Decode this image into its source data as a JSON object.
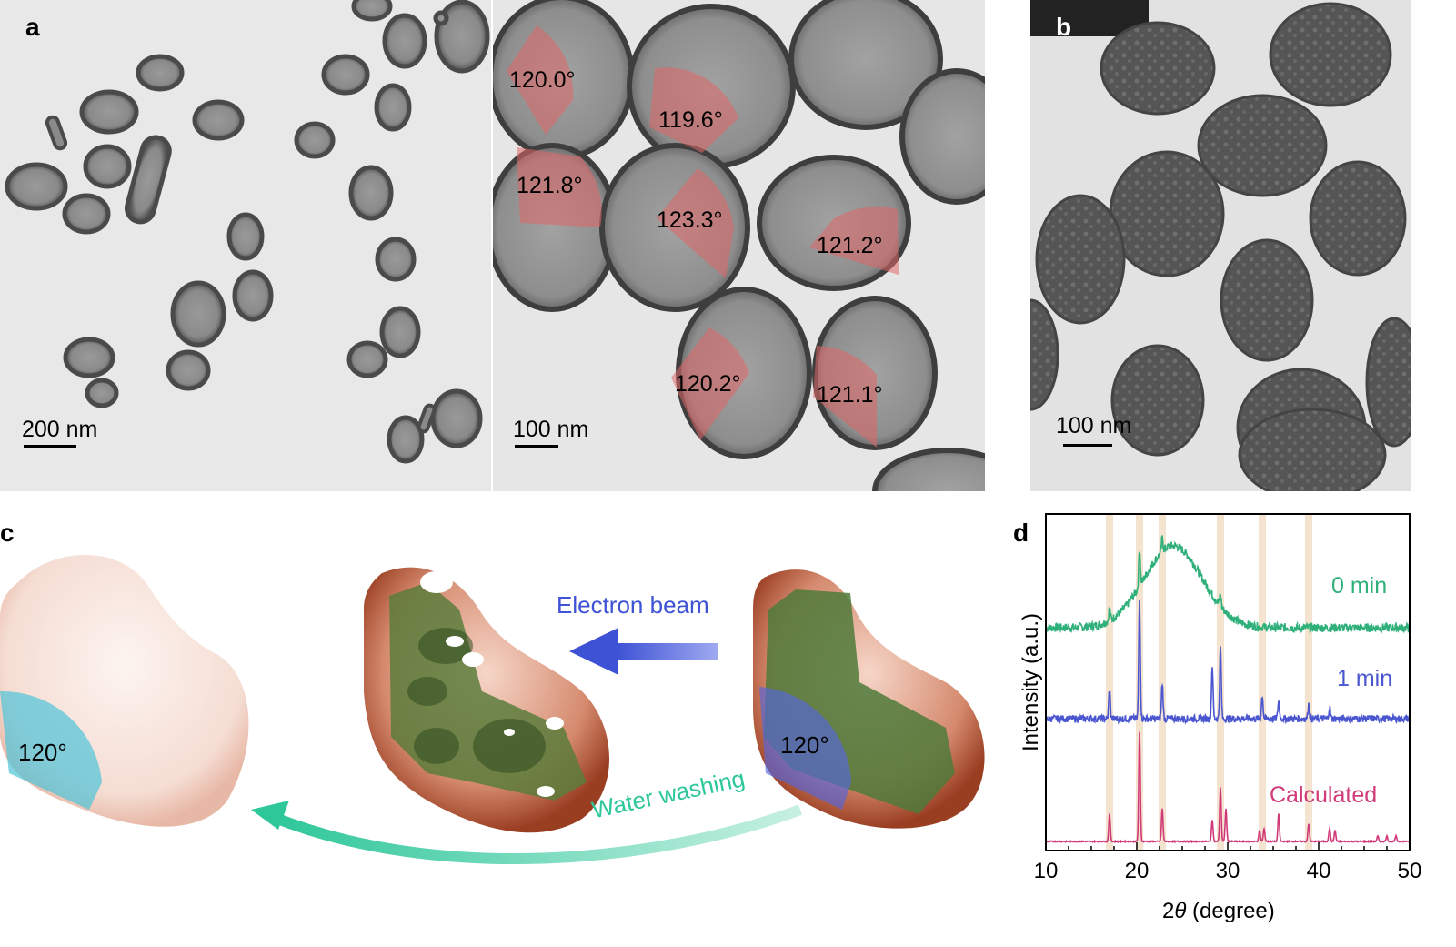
{
  "panel_a": {
    "letter": "a",
    "left_scale": "200 nm",
    "right_scale": "100 nm",
    "angles": [
      "120.0°",
      "119.6°",
      "121.8°",
      "123.3°",
      "121.2°",
      "120.2°",
      "121.1°"
    ]
  },
  "panel_b": {
    "letter": "b",
    "scale": "100 nm"
  },
  "panel_c": {
    "letter": "c",
    "angle_left": "120°",
    "angle_right": "120°",
    "electron_beam": "Electron beam",
    "water_washing": "Water washing",
    "colors": {
      "beam": "#3d52d5",
      "washing": "#2ec79a",
      "sector": "#4fc3d8",
      "shell": "#b85a3c",
      "core": "#4f7a3a"
    }
  },
  "panel_d": {
    "letter": "d",
    "chart_data": {
      "type": "line",
      "xlabel_prefix": "2",
      "xlabel_symbol": "θ",
      "xlabel_suffix": " (degree)",
      "ylabel": "Intensity (a.u.)",
      "xlim": [
        10,
        50
      ],
      "xticks": [
        10,
        20,
        30,
        40,
        50
      ],
      "highlight_bands": [
        17,
        20.3,
        22.8,
        29.2,
        33.8,
        38.9
      ],
      "series": [
        {
          "name": "0 min",
          "color": "#2fb07a",
          "peaks": [
            [
              17,
              0.3
            ],
            [
              20.3,
              1.0
            ],
            [
              22.8,
              0.35
            ],
            [
              29.2,
              0.3
            ]
          ],
          "hump": {
            "center": 24,
            "width": 4.5,
            "height": 1.0
          }
        },
        {
          "name": "1 min",
          "color": "#4a55d0",
          "peaks": [
            [
              17,
              0.25
            ],
            [
              20.3,
              1.0
            ],
            [
              22.8,
              0.3
            ],
            [
              28.3,
              0.45
            ],
            [
              29.2,
              0.6
            ],
            [
              33.8,
              0.2
            ],
            [
              35.6,
              0.15
            ],
            [
              38.9,
              0.12
            ],
            [
              41.2,
              0.1
            ]
          ]
        },
        {
          "name": "Calculated",
          "color": "#d03a78",
          "peaks": [
            [
              17,
              0.25
            ],
            [
              20.3,
              1.0
            ],
            [
              22.8,
              0.3
            ],
            [
              28.3,
              0.2
            ],
            [
              29.2,
              0.5
            ],
            [
              29.8,
              0.3
            ],
            [
              33.5,
              0.1
            ],
            [
              34,
              0.12
            ],
            [
              35.6,
              0.25
            ],
            [
              38.9,
              0.16
            ],
            [
              41.2,
              0.12
            ],
            [
              41.8,
              0.1
            ],
            [
              46.5,
              0.05
            ],
            [
              47.5,
              0.05
            ],
            [
              48.5,
              0.05
            ]
          ]
        }
      ]
    }
  }
}
